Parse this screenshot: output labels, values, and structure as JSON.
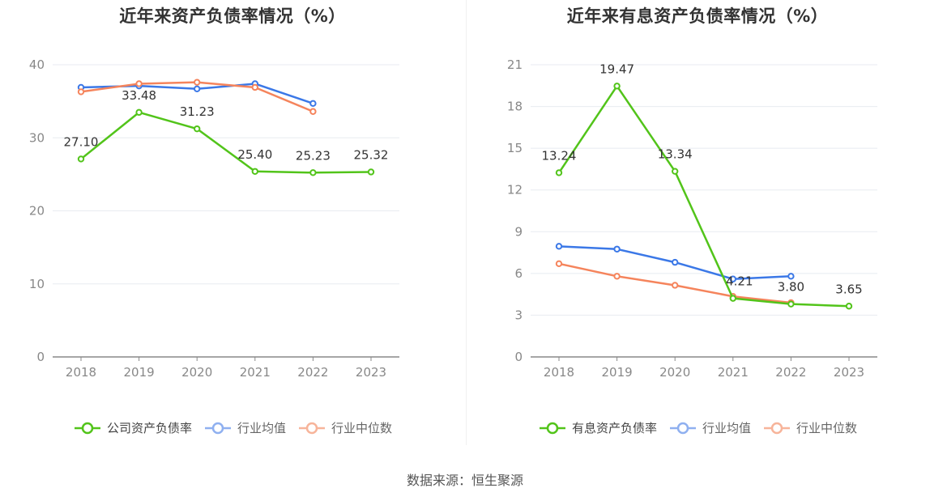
{
  "colors": {
    "company": "#52c41a",
    "avg": "#3b78e7",
    "median": "#f5845c"
  },
  "source": "数据来源：恒生聚源",
  "chart_data": [
    {
      "type": "line",
      "title": "近年来资产负债率情况（%）",
      "categories": [
        "2018",
        "2019",
        "2020",
        "2021",
        "2022",
        "2023"
      ],
      "ylim": [
        0,
        40
      ],
      "yticks": [
        0,
        10,
        20,
        30,
        40
      ],
      "series": [
        {
          "name": "公司资产负债率",
          "key": "company",
          "values": [
            27.1,
            33.48,
            31.23,
            25.4,
            25.23,
            25.32
          ],
          "labels": [
            "27.10",
            "33.48",
            "31.23",
            "25.40",
            "25.23",
            "25.32"
          ]
        },
        {
          "name": "行业均值",
          "key": "avg",
          "values": [
            36.9,
            37.1,
            36.7,
            37.4,
            34.7,
            null
          ]
        },
        {
          "name": "行业中位数",
          "key": "median",
          "values": [
            36.3,
            37.4,
            37.6,
            36.9,
            33.6,
            null
          ]
        }
      ]
    },
    {
      "type": "line",
      "title": "近年来有息资产负债率情况（%）",
      "categories": [
        "2018",
        "2019",
        "2020",
        "2021",
        "2022",
        "2023"
      ],
      "ylim": [
        0,
        21
      ],
      "yticks": [
        0,
        3,
        6,
        9,
        12,
        15,
        18,
        21
      ],
      "series": [
        {
          "name": "有息资产负债率",
          "key": "company",
          "values": [
            13.24,
            19.47,
            13.34,
            4.21,
            3.8,
            3.65
          ],
          "labels": [
            "13.24",
            "19.47",
            "13.34",
            "4.21",
            "3.80",
            "3.65"
          ]
        },
        {
          "name": "行业均值",
          "key": "avg",
          "values": [
            7.95,
            7.75,
            6.8,
            5.6,
            5.8,
            null
          ]
        },
        {
          "name": "行业中位数",
          "key": "median",
          "values": [
            6.7,
            5.8,
            5.15,
            4.35,
            3.9,
            null
          ]
        }
      ]
    }
  ]
}
